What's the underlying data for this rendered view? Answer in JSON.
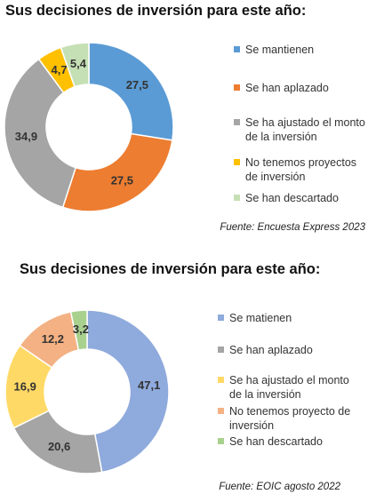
{
  "chart_data": [
    {
      "type": "donut",
      "title": "Sus decisiones de inversión para este año:",
      "categories": [
        "Se mantienen",
        "Se han aplazado",
        "Se ha ajustado el monto de la inversión",
        "No tenemos proyectos de inversión",
        "Se han descartado"
      ],
      "values": [
        27.5,
        27.5,
        34.9,
        4.7,
        5.4
      ],
      "value_labels": [
        "27,5",
        "27,5",
        "34,9",
        "4,7",
        "5,4"
      ],
      "colors": [
        "#5b9bd5",
        "#ed7d31",
        "#a5a5a5",
        "#ffc000",
        "#c5e0b4"
      ],
      "source": "Fuente: Encuesta Express 2023"
    },
    {
      "type": "donut",
      "title": "Sus decisiones de inversión para este año:",
      "categories": [
        "Se matienen",
        "Se han aplazado",
        "Se ha ajustado el monto de la inversión",
        "No tenemos proyecto de inversión",
        "Se han descartado"
      ],
      "values": [
        47.1,
        20.6,
        16.9,
        12.2,
        3.2
      ],
      "value_labels": [
        "47,1",
        "20,6",
        "16,9",
        "12,2",
        "3,2"
      ],
      "colors": [
        "#8faadc",
        "#a5a5a5",
        "#ffd966",
        "#f4b183",
        "#a9d18e"
      ],
      "source": "Fuente: EOIC agosto 2022"
    }
  ]
}
